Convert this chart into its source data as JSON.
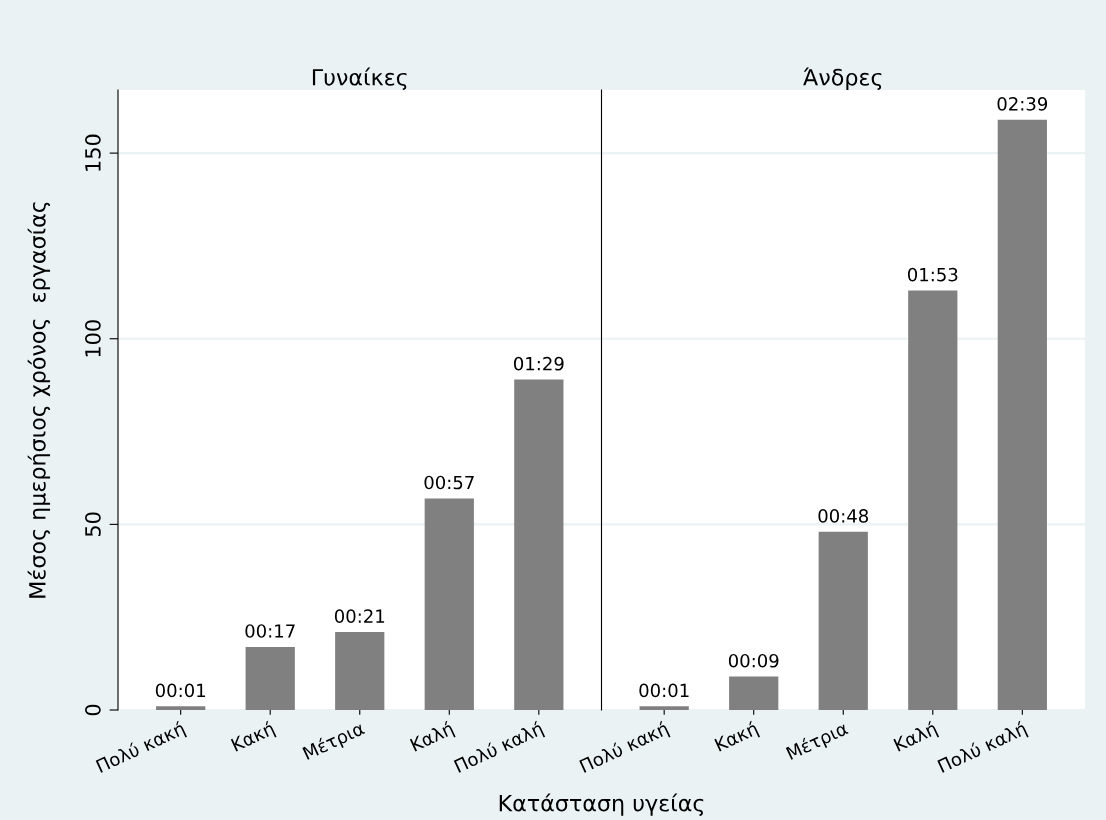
{
  "chart_data": [
    {
      "type": "bar",
      "title": "Γυναίκες",
      "xlabel": "Κατάσταση υγείας",
      "ylabel": "Μέσος ημερήσιος χρόνος  εργασίας",
      "categories": [
        "Πολύ κακή",
        "Κακή",
        "Μέτρια",
        "Καλή",
        "Πολύ καλή"
      ],
      "values": [
        1,
        17,
        21,
        57,
        89
      ],
      "color": "#808080",
      "value_labels": [
        "00:01",
        "00:17",
        "00:21",
        "00:57",
        "01:29"
      ],
      "ylim": [
        0,
        167
      ],
      "yticks": [
        0,
        50,
        100,
        150
      ],
      "grid": "y"
    },
    {
      "type": "bar",
      "title": "Άνδρες",
      "categories": [
        "Πολύ κακή",
        "Κακή",
        "Μέτρια",
        "Καλή",
        "Πολύ καλή"
      ],
      "values": [
        1,
        9,
        48,
        113,
        159
      ],
      "color": "#808080",
      "value_labels": [
        "00:01",
        "00:09",
        "00:48",
        "01:53",
        "02:39"
      ],
      "ylim": [
        0,
        167
      ],
      "yticks": [
        0,
        50,
        100,
        150
      ],
      "grid": "y",
      "tick_labels": "x"
    }
  ]
}
